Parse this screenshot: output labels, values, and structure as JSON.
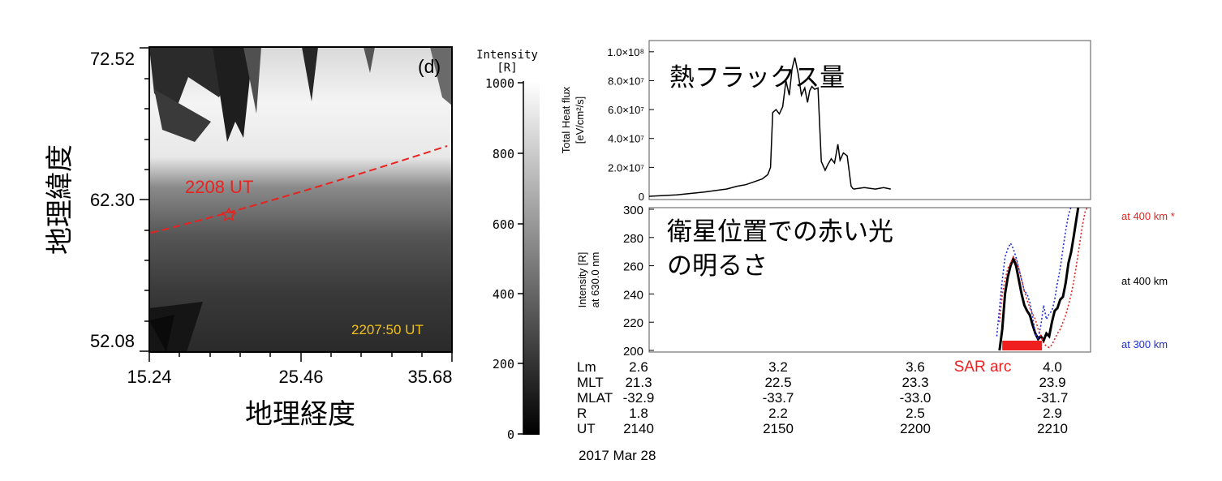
{
  "left_image": {
    "panel_label": "(d)",
    "y_ticks": [
      "72.52",
      "62.30",
      "52.08"
    ],
    "x_ticks": [
      "15.24",
      "25.46",
      "35.68"
    ],
    "y_label": "地理緯度",
    "x_label": "地理経度",
    "event_time_label": "2208 UT",
    "frame_time_label": "2207:50 UT",
    "colorbar_title_line1": "Intensity",
    "colorbar_title_line2": "[R]",
    "colorbar_ticks": [
      "1000",
      "800",
      "600",
      "400",
      "200",
      "0"
    ],
    "colors": {
      "track": "#e8231f",
      "frame_time": "#f2c01a"
    }
  },
  "chart_data": [
    {
      "type": "line",
      "title": "熱フラックス量",
      "ylabel_line1": "Total Heat flux",
      "ylabel_line2": "[eV/cm²/s]",
      "y_tick_labels": [
        "1.0×10⁸",
        "8.0×10⁷",
        "6.0×10⁷",
        "4.0×10⁷",
        "2.0×10⁷",
        "0"
      ],
      "y_ticks": [
        100000000,
        80000000,
        60000000,
        40000000,
        20000000,
        0
      ],
      "ylim": [
        0,
        110000000
      ],
      "xlim": [
        2137.0,
        2217.0
      ],
      "series": [
        {
          "color": "#000000",
          "x": [
            2137.0,
            2142.0,
            2147.0,
            2151.0,
            2153.0,
            2154.5,
            2156.0,
            2157.5,
            2158.5,
            2159.0,
            2159.4,
            2160.0,
            2160.6,
            2161.2,
            2161.8,
            2162.4,
            2162.9,
            2163.4,
            2164.0,
            2164.6,
            2165.2,
            2165.7,
            2166.1,
            2166.5,
            2167.0,
            2167.6,
            2168.2,
            2168.9,
            2169.4,
            2170.0,
            2170.6,
            2171.2,
            2171.6,
            2172.2,
            2172.9,
            2173.6,
            2174.0
          ],
          "y": [
            0,
            1000000,
            3000000,
            5000000,
            7000000,
            8000000,
            10000000,
            12000000,
            15000000,
            20000000,
            58000000,
            60000000,
            57000000,
            62000000,
            80000000,
            70000000,
            88000000,
            96000000,
            85000000,
            70000000,
            75000000,
            65000000,
            73000000,
            76000000,
            74000000,
            75000000,
            24000000,
            18000000,
            22000000,
            26000000,
            23000000,
            36000000,
            25000000,
            30000000,
            28000000,
            7000000,
            5000000
          ]
        },
        {
          "color": "#000000",
          "x": [
            2174.0,
            2176.0,
            2178.0,
            2179.5,
            2180.8
          ],
          "y": [
            5000000,
            6000000,
            5000000,
            6000000,
            5000000
          ]
        }
      ]
    },
    {
      "type": "line",
      "title": "衛星位置での赤い光\nの明るさ",
      "ylabel_line1": "Intensity [R]",
      "ylabel_line2": "at 630.0 nm",
      "y_ticks": [
        200,
        220,
        240,
        260,
        280,
        300
      ],
      "ylim": [
        200,
        300
      ],
      "xlim": [
        2137.0,
        2217.0
      ],
      "legend": [
        "at 400 km *",
        "at 400 km",
        "at 300 km"
      ],
      "legend_colors": [
        "#e8231f",
        "#000000",
        "#1f2fd8"
      ],
      "annotation": "SAR arc",
      "annotation_color": "#f01f1f",
      "sar_arc_range": [
        2201.0,
        2208.2
      ],
      "series": [
        {
          "name": "at 400 km",
          "color": "#000000",
          "style": "solid",
          "x": [
            2200.5,
            2201.0,
            2201.5,
            2202.0,
            2202.5,
            2203.0,
            2203.5,
            2204.0,
            2204.5,
            2205.0,
            2205.5,
            2206.0,
            2206.5,
            2207.0,
            2207.5,
            2208.0,
            2208.5,
            2209.0,
            2209.5,
            2210.0,
            2210.5,
            2211.0,
            2211.5,
            2212.0,
            2212.5,
            2213.0,
            2213.5,
            2214.0,
            2214.4,
            2214.8
          ],
          "y": [
            200,
            215,
            240,
            252,
            260,
            265,
            260,
            250,
            240,
            232,
            228,
            225,
            218,
            212,
            208,
            210,
            207,
            212,
            210,
            220,
            228,
            230,
            236,
            238,
            248,
            262,
            270,
            282,
            292,
            302
          ]
        },
        {
          "name": "at 400 km *",
          "color": "#e8231f",
          "style": "dotted",
          "x": [
            2200.5,
            2201.0,
            2201.5,
            2202.0,
            2202.5,
            2203.0,
            2203.5,
            2204.0,
            2204.5,
            2205.0,
            2205.5,
            2206.0,
            2206.5,
            2207.0,
            2207.5,
            2208.0,
            2208.5,
            2209.0,
            2209.5,
            2210.0,
            2210.5,
            2211.0,
            2211.5,
            2212.0,
            2212.5,
            2213.0,
            2213.5,
            2214.0,
            2214.5,
            2215.0,
            2215.5,
            2216.0,
            2216.5
          ],
          "y": [
            220,
            240,
            250,
            258,
            262,
            266,
            264,
            258,
            250,
            242,
            236,
            230,
            226,
            222,
            215,
            210,
            205,
            203,
            202,
            204,
            208,
            212,
            215,
            220,
            225,
            232,
            240,
            250,
            262,
            275,
            288,
            298,
            302
          ]
        },
        {
          "name": "at 300 km",
          "color": "#1f2fd8",
          "style": "dotted",
          "x": [
            2200.0,
            2200.5,
            2201.0,
            2201.5,
            2202.0,
            2202.5,
            2203.0,
            2203.5,
            2204.0,
            2204.5,
            2205.0,
            2205.5,
            2206.0,
            2206.5,
            2207.0,
            2207.5,
            2208.0,
            2208.5,
            2209.0,
            2209.5,
            2210.0,
            2210.5,
            2211.0,
            2211.5,
            2212.0,
            2212.5,
            2213.0,
            2213.5
          ],
          "y": [
            210,
            230,
            250,
            266,
            272,
            276,
            272,
            266,
            258,
            250,
            242,
            240,
            234,
            224,
            212,
            208,
            218,
            232,
            222,
            226,
            228,
            236,
            248,
            258,
            272,
            285,
            296,
            302
          ]
        }
      ]
    }
  ],
  "axis_table": {
    "rows": [
      {
        "label": "Lm",
        "values": [
          "2.6",
          "3.2",
          "3.6",
          "4.0"
        ]
      },
      {
        "label": "MLT",
        "values": [
          "21.3",
          "22.5",
          "23.3",
          "23.9"
        ]
      },
      {
        "label": "MLAT",
        "values": [
          "-32.9",
          "-33.7",
          "-33.0",
          "-31.7"
        ]
      },
      {
        "label": "R",
        "values": [
          "1.8",
          "2.2",
          "2.5",
          "2.9"
        ]
      },
      {
        "label": "UT",
        "values": [
          "2140",
          "2150",
          "2200",
          "2210"
        ]
      }
    ],
    "date": "2017 Mar 28"
  }
}
